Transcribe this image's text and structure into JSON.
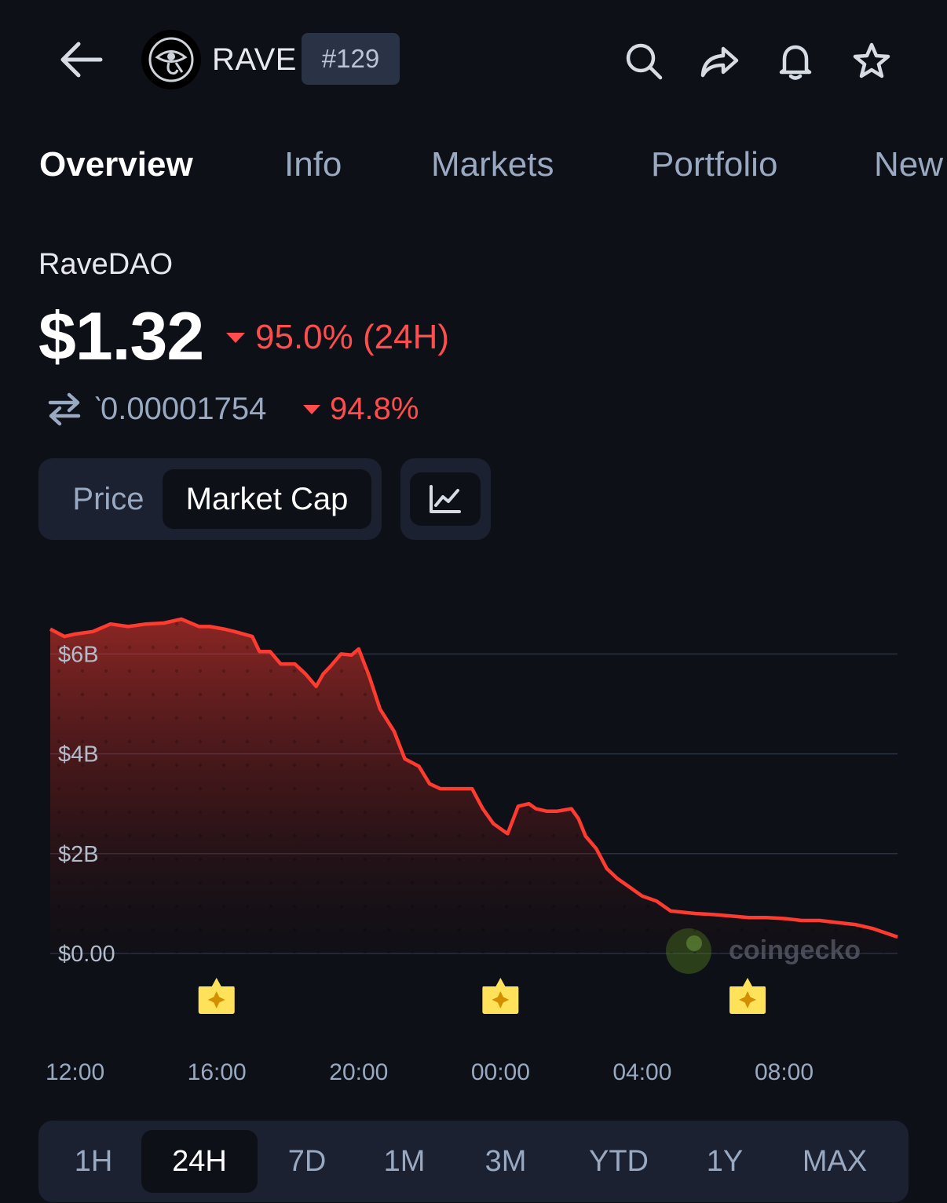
{
  "header": {
    "back_icon": "arrow-left-icon",
    "logo_icon": "eye-of-horus-logo",
    "symbol": "RAVE",
    "rank": "#129",
    "actions": [
      "search-icon",
      "share-icon",
      "bell-icon",
      "star-icon"
    ]
  },
  "tabs": [
    {
      "label": "Overview",
      "active": true
    },
    {
      "label": "Info",
      "active": false
    },
    {
      "label": "Markets",
      "active": false
    },
    {
      "label": "Portfolio",
      "active": false
    },
    {
      "label": "New",
      "active": false
    }
  ],
  "coin": {
    "name": "RaveDAO",
    "price": "$1.32",
    "change_24h": "95.0% (24H)",
    "btc_price": "̀0.00001754",
    "btc_change": "94.8%",
    "change_color": "#ff4d4d"
  },
  "toggle": {
    "price_label": "Price",
    "market_cap_label": "Market Cap",
    "selected": "Market Cap",
    "chart_type_icon": "line-chart-icon"
  },
  "chart_data": {
    "type": "area",
    "y_ticks": [
      "$6B",
      "$4B",
      "$2B",
      "$0.00"
    ],
    "y_tick_values": [
      6,
      4,
      2,
      0
    ],
    "ylim": [
      0,
      6.7
    ],
    "x_ticks": [
      "12:00",
      "16:00",
      "20:00",
      "00:00",
      "04:00",
      "08:00"
    ],
    "x_tick_values": [
      0,
      4,
      8,
      12,
      16,
      20
    ],
    "xlim": [
      -0.7,
      23.2
    ],
    "line_color": "#ff3b30",
    "grid": true,
    "watermark": "coingecko",
    "event_markers_x": [
      3.99,
      12.0,
      18.97
    ],
    "series": [
      {
        "x": [
          -0.7,
          -0.3,
          0.0,
          0.5,
          1.0,
          1.5,
          2.0,
          2.5,
          3.0,
          3.5,
          3.8,
          4.2,
          4.5,
          5.0,
          5.2,
          5.5,
          5.8,
          6.2,
          6.5,
          6.8,
          7.0,
          7.2,
          7.5,
          7.8,
          8.0,
          8.3,
          8.6,
          9.0,
          9.3,
          9.7,
          10.0,
          10.3,
          10.6,
          10.9,
          11.2,
          11.5,
          11.8,
          12.2,
          12.5,
          12.8,
          13.0,
          13.3,
          13.6,
          14.0,
          14.2,
          14.4,
          14.7,
          15.0,
          15.3,
          15.6,
          16.0,
          16.4,
          16.8,
          17.5,
          18.0,
          18.5,
          19.0,
          19.5,
          20.0,
          20.5,
          21.0,
          21.5,
          22.0,
          22.5,
          23.2
        ],
        "y": [
          6.5,
          6.35,
          6.4,
          6.45,
          6.6,
          6.55,
          6.6,
          6.62,
          6.7,
          6.55,
          6.55,
          6.5,
          6.45,
          6.35,
          6.05,
          6.05,
          5.8,
          5.8,
          5.6,
          5.35,
          5.6,
          5.75,
          6.0,
          5.98,
          6.1,
          5.55,
          4.9,
          4.45,
          3.9,
          3.75,
          3.4,
          3.3,
          3.3,
          3.3,
          3.3,
          2.9,
          2.6,
          2.4,
          2.95,
          3.0,
          2.9,
          2.85,
          2.85,
          2.9,
          2.7,
          2.35,
          2.1,
          1.7,
          1.5,
          1.35,
          1.15,
          1.05,
          0.85,
          0.8,
          0.78,
          0.75,
          0.72,
          0.72,
          0.7,
          0.66,
          0.66,
          0.62,
          0.58,
          0.5,
          0.33
        ]
      }
    ]
  },
  "range": {
    "options": [
      "1H",
      "24H",
      "7D",
      "1M",
      "3M",
      "YTD",
      "1Y",
      "MAX"
    ],
    "selected": "24H"
  }
}
